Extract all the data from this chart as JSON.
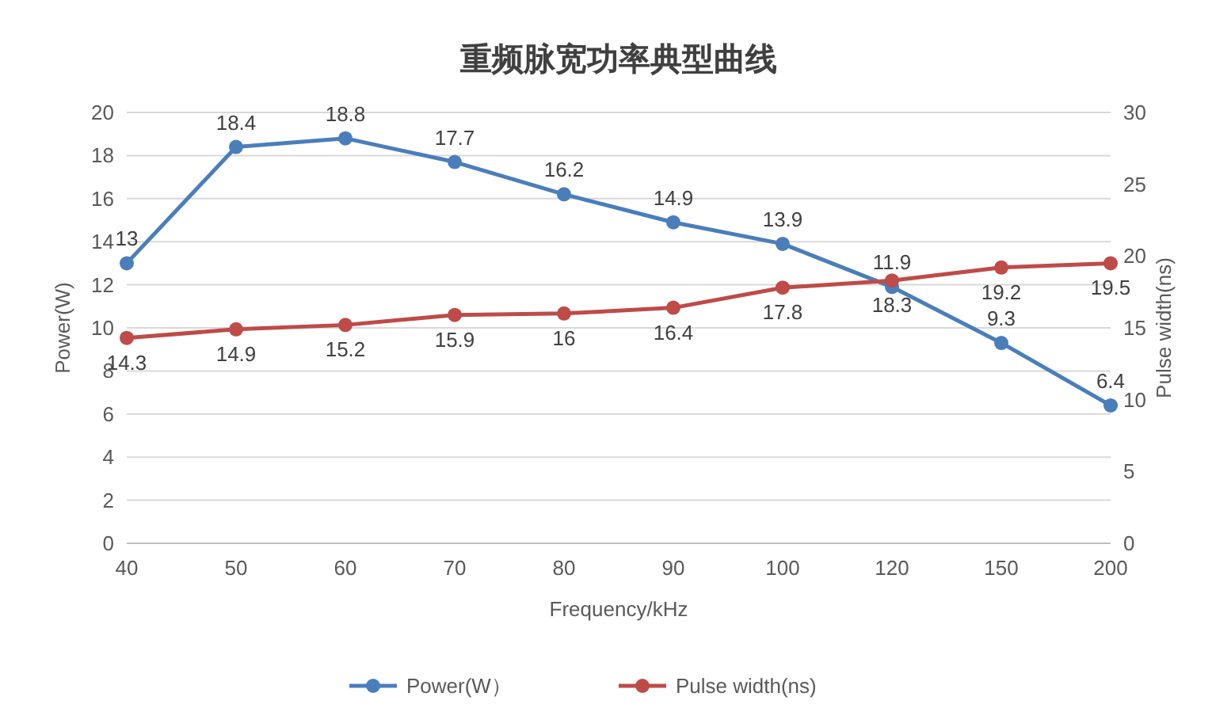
{
  "chart_data": {
    "type": "line",
    "title": "重频脉宽功率典型曲线",
    "xlabel": "Frequency/kHz",
    "ylabel": "Power(W)",
    "y2label": "Pulse width(ns)",
    "categories": [
      "40",
      "50",
      "60",
      "70",
      "80",
      "90",
      "100",
      "120",
      "150",
      "200"
    ],
    "series": [
      {
        "name": "Power(W）",
        "color": "#4a7ebb",
        "values": [
          13,
          18.4,
          18.8,
          17.7,
          16.2,
          14.9,
          13.9,
          11.9,
          9.3,
          6.4
        ]
      },
      {
        "name": "Pulse width(ns)",
        "color": "#be4b48",
        "axis": "y2",
        "values": [
          14.3,
          14.9,
          15.2,
          15.9,
          16,
          16.4,
          17.8,
          18.3,
          19.2,
          19.5
        ]
      }
    ],
    "ylim": [
      0,
      20
    ],
    "yticks": [
      0,
      2,
      4,
      6,
      8,
      10,
      12,
      14,
      16,
      18,
      20
    ],
    "y2lim": [
      0,
      30
    ],
    "y2ticks": [
      0,
      5,
      10,
      15,
      20,
      25,
      30
    ],
    "data_labels": true,
    "grid": "y",
    "legend": "bottom",
    "marker": "circle",
    "line_style": "solid"
  }
}
